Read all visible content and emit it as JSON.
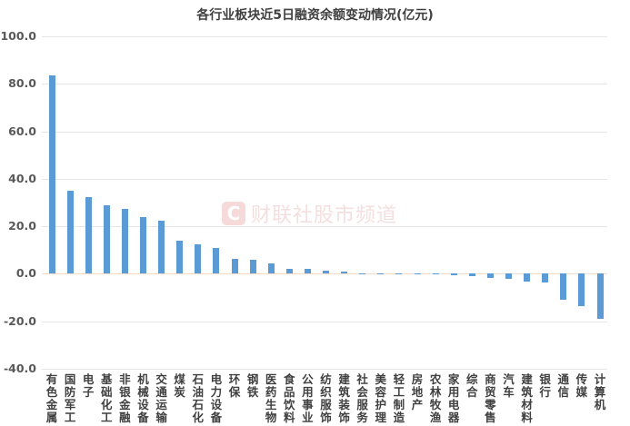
{
  "chart_data": {
    "type": "bar",
    "title": "各行业板块近5日融资余额变动情况(亿元)",
    "xlabel": "",
    "ylabel": "",
    "ylim": [
      -40,
      100
    ],
    "yticks": [
      "100.0",
      "80.0",
      "60.0",
      "40.0",
      "20.0",
      "0.0",
      "-20.0",
      "-40.0"
    ],
    "grid": true,
    "legend": null,
    "bar_color": "#5b9bd5",
    "categories": [
      "有色金属",
      "国防军工",
      "电子",
      "基础化工",
      "非银金融",
      "机械设备",
      "交通运输",
      "煤炭",
      "石油石化",
      "电力设备",
      "环保",
      "钢铁",
      "医药生物",
      "食品饮料",
      "公用事业",
      "纺织服饰",
      "建筑装饰",
      "社会服务",
      "美容护理",
      "轻工制造",
      "房地产",
      "农林牧渔",
      "家用电器",
      "综合",
      "商贸零售",
      "汽车",
      "建筑材料",
      "银行",
      "通信",
      "传媒",
      "计算机"
    ],
    "values": [
      83.5,
      34.8,
      32.3,
      29.0,
      27.4,
      24.0,
      22.3,
      14.0,
      12.3,
      10.9,
      6.4,
      6.0,
      4.5,
      2.2,
      2.0,
      1.2,
      0.9,
      0.3,
      -0.2,
      -0.3,
      -0.3,
      -0.4,
      -0.5,
      -0.8,
      -1.7,
      -2.1,
      -3.3,
      -3.6,
      -10.8,
      -13.5,
      -19.0
    ]
  },
  "watermark": {
    "logo": "C",
    "text": "财联社股市频道"
  }
}
